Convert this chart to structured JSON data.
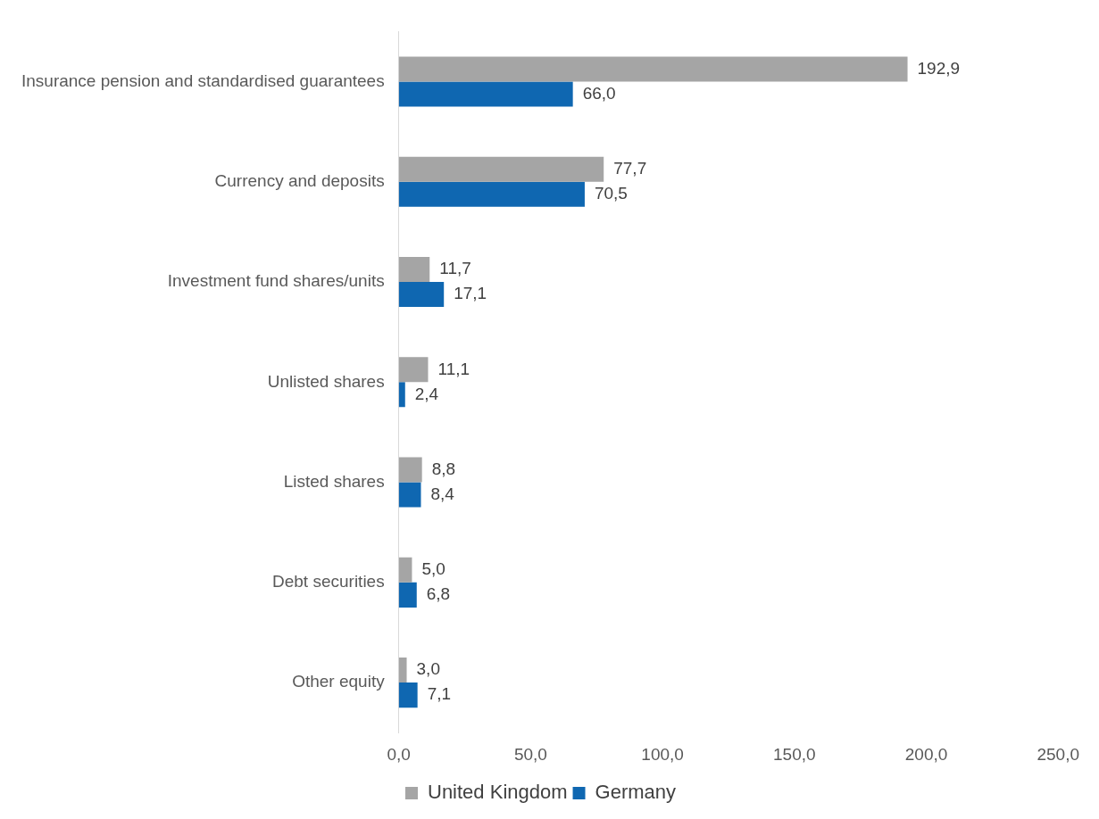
{
  "chart_data": {
    "type": "bar",
    "orientation": "horizontal",
    "categories": [
      "Insurance pension and standardised guarantees",
      "Currency and deposits",
      "Investment fund shares/units",
      "Unlisted shares",
      "Listed shares",
      "Debt securities",
      "Other equity"
    ],
    "series": [
      {
        "name": "United Kingdom",
        "color": "#a5a5a5",
        "values": [
          192.9,
          77.7,
          11.7,
          11.1,
          8.8,
          5.0,
          3.0
        ],
        "value_labels": [
          "192,9",
          "77,7",
          "11,7",
          "11,1",
          "8,8",
          "5,0",
          "3,0"
        ]
      },
      {
        "name": "Germany",
        "color": "#0f67b1",
        "values": [
          66.0,
          70.5,
          17.1,
          2.4,
          8.4,
          6.8,
          7.1
        ],
        "value_labels": [
          "66,0",
          "70,5",
          "17,1",
          "2,4",
          "8,4",
          "6,8",
          "7,1"
        ]
      }
    ],
    "xlim": [
      0,
      250
    ],
    "xticks": [
      {
        "value": 0,
        "label": "0,0"
      },
      {
        "value": 50,
        "label": "50,0"
      },
      {
        "value": 100,
        "label": "100,0"
      },
      {
        "value": 150,
        "label": "150,0"
      },
      {
        "value": 200,
        "label": "200,0"
      },
      {
        "value": 250,
        "label": "250,0"
      }
    ],
    "grid": false,
    "legend": "bottom"
  }
}
